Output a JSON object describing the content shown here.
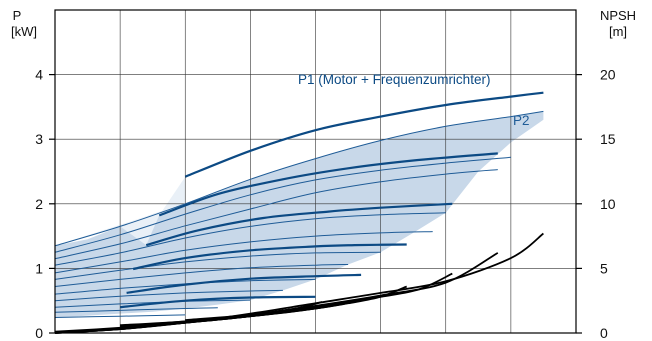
{
  "chart_data": {
    "type": "line",
    "title": "",
    "y_left": {
      "label": "P",
      "unit": "[kW]",
      "ylim": [
        0,
        5
      ],
      "ticks": [
        0,
        1,
        2,
        3,
        4
      ]
    },
    "y_right": {
      "label": "NPSH",
      "unit": "[m]",
      "ylim": [
        0,
        25
      ],
      "ticks": [
        0,
        5,
        10,
        15,
        20
      ]
    },
    "x": {
      "xlim": [
        0,
        800
      ],
      "gridlines": [
        0,
        100,
        200,
        300,
        400,
        500,
        600,
        700,
        800
      ],
      "tick_labels": []
    },
    "grid": true,
    "colors": {
      "p1": "#0c4a84",
      "p2": "#1f5c97",
      "region": "#c8d8e9",
      "npsh": "#000000",
      "grid": "#333333"
    },
    "annotations": [
      {
        "name": "p1",
        "text": "P1 (Motor + Frequenzumrichter)"
      },
      {
        "name": "p2",
        "text": "P2"
      }
    ],
    "p1_curves": [
      {
        "x": [
          200,
          300,
          400,
          500,
          600,
          700,
          750
        ],
        "y": [
          2.42,
          2.82,
          3.14,
          3.35,
          3.53,
          3.66,
          3.72
        ]
      },
      {
        "x": [
          160,
          250,
          350,
          450,
          550,
          680
        ],
        "y": [
          1.82,
          2.15,
          2.38,
          2.55,
          2.67,
          2.78
        ]
      },
      {
        "x": [
          140,
          220,
          320,
          420,
          500,
          610
        ],
        "y": [
          1.36,
          1.59,
          1.78,
          1.88,
          1.94,
          2.0
        ]
      },
      {
        "x": [
          120,
          200,
          300,
          400,
          460,
          540
        ],
        "y": [
          0.99,
          1.16,
          1.28,
          1.34,
          1.36,
          1.37
        ]
      },
      {
        "x": [
          110,
          200,
          300,
          400,
          470
        ],
        "y": [
          0.62,
          0.75,
          0.84,
          0.88,
          0.9
        ]
      },
      {
        "x": [
          100,
          200,
          300,
          400
        ],
        "y": [
          0.4,
          0.5,
          0.55,
          0.56
        ]
      }
    ],
    "p2_curves": [
      {
        "x": [
          0,
          100,
          200,
          300,
          400,
          500,
          600,
          700,
          750
        ],
        "y": [
          1.35,
          1.65,
          2.0,
          2.38,
          2.7,
          2.98,
          3.2,
          3.35,
          3.43
        ]
      },
      {
        "x": [
          0,
          100,
          200,
          300,
          400,
          500,
          600,
          700
        ],
        "y": [
          1.25,
          1.52,
          1.84,
          2.14,
          2.37,
          2.52,
          2.63,
          2.72
        ]
      },
      {
        "x": [
          0,
          100,
          200,
          300,
          400,
          500,
          600,
          680
        ],
        "y": [
          1.15,
          1.38,
          1.66,
          1.92,
          2.17,
          2.34,
          2.46,
          2.53
        ]
      },
      {
        "x": [
          0,
          100,
          200,
          300,
          400,
          500,
          600
        ],
        "y": [
          1.05,
          1.24,
          1.47,
          1.65,
          1.77,
          1.83,
          1.86
        ]
      },
      {
        "x": [
          0,
          100,
          200,
          300,
          400,
          500,
          580
        ],
        "y": [
          0.93,
          1.1,
          1.28,
          1.41,
          1.5,
          1.55,
          1.57
        ]
      },
      {
        "x": [
          0,
          100,
          200,
          300,
          400,
          500
        ],
        "y": [
          0.83,
          0.97,
          1.1,
          1.19,
          1.24,
          1.25
        ]
      },
      {
        "x": [
          0,
          100,
          200,
          300,
          400,
          450
        ],
        "y": [
          0.72,
          0.83,
          0.93,
          1.01,
          1.05,
          1.06
        ]
      },
      {
        "x": [
          0,
          100,
          200,
          300,
          400
        ],
        "y": [
          0.6,
          0.69,
          0.76,
          0.81,
          0.83
        ]
      },
      {
        "x": [
          0,
          100,
          200,
          300,
          350
        ],
        "y": [
          0.5,
          0.57,
          0.62,
          0.65,
          0.66
        ]
      },
      {
        "x": [
          0,
          100,
          200,
          300
        ],
        "y": [
          0.4,
          0.45,
          0.49,
          0.51
        ]
      },
      {
        "x": [
          0,
          100,
          200,
          250
        ],
        "y": [
          0.32,
          0.35,
          0.38,
          0.39
        ]
      },
      {
        "x": [
          0,
          100,
          200
        ],
        "y": [
          0.24,
          0.26,
          0.28
        ]
      }
    ],
    "npsh_curves": [
      {
        "x": [
          0,
          100,
          200,
          300,
          400,
          500,
          600,
          700,
          750
        ],
        "y": [
          0.0,
          0.3,
          0.8,
          1.5,
          2.3,
          3.1,
          4.0,
          5.8,
          7.7
        ]
      },
      {
        "x": [
          0,
          100,
          200,
          300,
          400,
          500,
          600,
          680
        ],
        "y": [
          0.0,
          0.3,
          0.8,
          1.4,
          2.1,
          2.9,
          3.9,
          6.2
        ]
      },
      {
        "x": [
          0,
          100,
          200,
          300,
          400,
          500,
          560,
          610
        ],
        "y": [
          0.0,
          0.3,
          0.8,
          1.3,
          2.0,
          2.8,
          3.4,
          4.6
        ]
      },
      {
        "x": [
          0,
          100,
          200,
          300,
          400,
          450,
          500,
          540
        ],
        "y": [
          0.1,
          0.4,
          0.8,
          1.3,
          1.9,
          2.3,
          2.8,
          3.6
        ]
      },
      {
        "x": [
          100,
          200,
          300,
          400,
          480
        ],
        "y": [
          0.4,
          0.8,
          1.3,
          1.9,
          2.6
        ]
      },
      {
        "x": [
          100,
          200,
          300,
          400,
          440
        ],
        "y": [
          0.5,
          0.9,
          1.3,
          1.9,
          2.4
        ]
      },
      {
        "x": [
          100,
          200,
          300,
          370,
          410
        ],
        "y": [
          0.6,
          0.9,
          1.4,
          1.9,
          2.4
        ]
      },
      {
        "x": [
          200,
          300,
          360
        ],
        "y": [
          1.0,
          1.4,
          1.8
        ]
      }
    ],
    "region": {
      "x": [
        0,
        50,
        100,
        150,
        200,
        250,
        300,
        350,
        400,
        450,
        500,
        550,
        600,
        650,
        700,
        750,
        750,
        700,
        650,
        600,
        550,
        500,
        450,
        400,
        350,
        300,
        250,
        200,
        150,
        100,
        50,
        0
      ],
      "y": [
        1.35,
        1.45,
        1.65,
        1.84,
        2.0,
        2.2,
        2.38,
        2.55,
        2.7,
        2.85,
        2.98,
        3.1,
        3.2,
        3.28,
        3.35,
        3.43,
        3.3,
        2.95,
        2.5,
        1.86,
        1.55,
        1.25,
        1.06,
        0.83,
        0.66,
        0.51,
        0.44,
        0.38,
        0.33,
        0.3,
        0.27,
        0.24
      ]
    },
    "region_cap": {
      "x": [
        0,
        100,
        140,
        160,
        200,
        200,
        0
      ],
      "y": [
        1.35,
        1.65,
        1.36,
        1.82,
        2.42,
        2.0,
        1.35
      ]
    }
  }
}
